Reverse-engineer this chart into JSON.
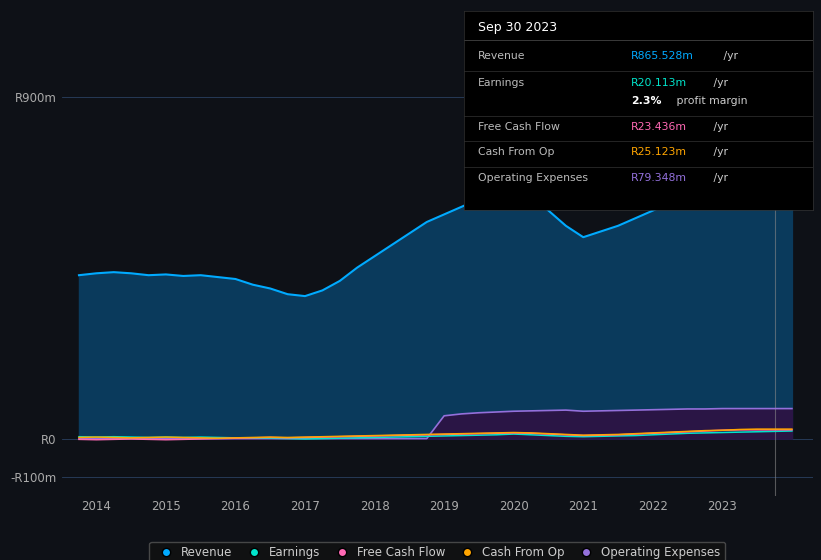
{
  "bg_color": "#0e1117",
  "plot_bg_color": "#0e1117",
  "title_box": {
    "date": "Sep 30 2023",
    "rows": [
      {
        "label": "Revenue",
        "value": "R865.528m",
        "suffix": " /yr",
        "value_color": "#00bfff"
      },
      {
        "label": "Earnings",
        "value": "R20.113m",
        "suffix": " /yr",
        "value_color": "#00e5cc"
      },
      {
        "label": "",
        "value": "2.3%",
        "suffix": " profit margin",
        "value_color": "#ffffff",
        "bold": true
      },
      {
        "label": "Free Cash Flow",
        "value": "R23.436m",
        "suffix": " /yr",
        "value_color": "#ff69b4"
      },
      {
        "label": "Cash From Op",
        "value": "R25.123m",
        "suffix": " /yr",
        "value_color": "#ffa500"
      },
      {
        "label": "Operating Expenses",
        "value": "R79.348m",
        "suffix": " /yr",
        "value_color": "#9370db"
      }
    ]
  },
  "years": [
    2013.75,
    2014.0,
    2014.25,
    2014.5,
    2014.75,
    2015.0,
    2015.25,
    2015.5,
    2015.75,
    2016.0,
    2016.25,
    2016.5,
    2016.75,
    2017.0,
    2017.25,
    2017.5,
    2017.75,
    2018.0,
    2018.25,
    2018.5,
    2018.75,
    2019.0,
    2019.25,
    2019.5,
    2019.75,
    2020.0,
    2020.25,
    2020.5,
    2020.75,
    2021.0,
    2021.25,
    2021.5,
    2021.75,
    2022.0,
    2022.25,
    2022.5,
    2022.75,
    2023.0,
    2023.25,
    2023.5,
    2023.75,
    2024.0
  ],
  "revenue": [
    430,
    435,
    438,
    435,
    430,
    432,
    428,
    430,
    425,
    420,
    405,
    395,
    380,
    375,
    390,
    415,
    450,
    480,
    510,
    540,
    570,
    590,
    610,
    630,
    650,
    660,
    640,
    600,
    560,
    530,
    545,
    560,
    580,
    600,
    620,
    640,
    650,
    660,
    700,
    760,
    830,
    865
  ],
  "earnings": [
    5,
    4,
    5,
    4,
    3,
    4,
    3,
    4,
    3,
    2,
    1,
    1,
    0,
    -1,
    0,
    1,
    2,
    3,
    4,
    5,
    6,
    7,
    8,
    9,
    10,
    12,
    10,
    8,
    6,
    5,
    6,
    7,
    8,
    10,
    12,
    14,
    15,
    16,
    17,
    18,
    19,
    20
  ],
  "free_cash_flow": [
    -2,
    -3,
    -2,
    -1,
    -2,
    -3,
    -2,
    -1,
    0,
    1,
    2,
    3,
    2,
    3,
    4,
    5,
    6,
    7,
    8,
    9,
    10,
    11,
    12,
    13,
    14,
    15,
    14,
    12,
    10,
    8,
    9,
    10,
    12,
    14,
    16,
    18,
    20,
    22,
    23,
    23,
    23,
    23
  ],
  "cash_from_op": [
    3,
    4,
    3,
    2,
    3,
    4,
    3,
    2,
    1,
    2,
    3,
    4,
    3,
    4,
    5,
    6,
    7,
    8,
    9,
    10,
    11,
    12,
    13,
    14,
    15,
    16,
    15,
    13,
    11,
    9,
    10,
    11,
    13,
    15,
    17,
    19,
    21,
    22,
    24,
    25,
    25,
    25
  ],
  "operating_expenses": [
    0,
    0,
    0,
    0,
    0,
    0,
    0,
    0,
    0,
    0,
    0,
    0,
    0,
    0,
    0,
    0,
    0,
    0,
    0,
    0,
    0,
    60,
    65,
    68,
    70,
    72,
    73,
    74,
    75,
    72,
    73,
    74,
    75,
    76,
    77,
    78,
    78,
    79,
    79,
    79,
    79,
    79
  ],
  "revenue_color": "#00aaff",
  "revenue_fill": "#0a3a5c",
  "earnings_color": "#00e5cc",
  "free_cash_flow_color": "#ff69b4",
  "cash_from_op_color": "#ffa500",
  "operating_expenses_color": "#9370db",
  "operating_expenses_fill": "#2a1545",
  "yticks": [
    -100,
    0,
    900
  ],
  "ytick_labels": [
    "-R100m",
    "R0",
    "R900m"
  ],
  "xtick_years": [
    2014,
    2015,
    2016,
    2017,
    2018,
    2019,
    2020,
    2021,
    2022,
    2023
  ],
  "ylim": [
    -150,
    970
  ],
  "xlim": [
    2013.5,
    2024.3
  ],
  "vline_x": 2023.75
}
